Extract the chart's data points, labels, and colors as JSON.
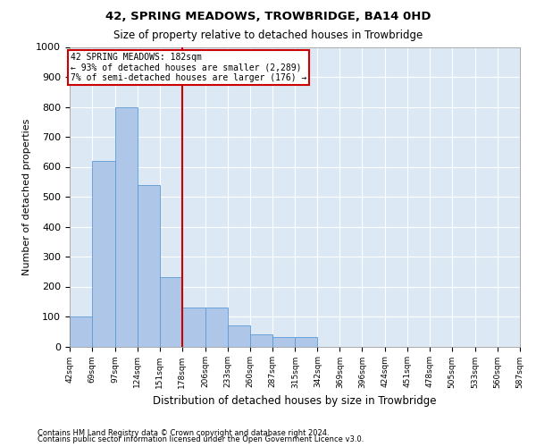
{
  "title": "42, SPRING MEADOWS, TROWBRIDGE, BA14 0HD",
  "subtitle": "Size of property relative to detached houses in Trowbridge",
  "xlabel": "Distribution of detached houses by size in Trowbridge",
  "ylabel": "Number of detached properties",
  "footnote1": "Contains HM Land Registry data © Crown copyright and database right 2024.",
  "footnote2": "Contains public sector information licensed under the Open Government Licence v3.0.",
  "bin_edges": [
    42,
    69,
    97,
    124,
    151,
    178,
    206,
    233,
    260,
    287,
    315,
    342,
    369,
    396,
    424,
    451,
    478,
    505,
    533,
    560,
    587
  ],
  "bin_labels": [
    "42sqm",
    "69sqm",
    "97sqm",
    "124sqm",
    "151sqm",
    "178sqm",
    "206sqm",
    "233sqm",
    "260sqm",
    "287sqm",
    "315sqm",
    "342sqm",
    "369sqm",
    "396sqm",
    "424sqm",
    "451sqm",
    "478sqm",
    "505sqm",
    "533sqm",
    "560sqm",
    "587sqm"
  ],
  "bar_heights": [
    100,
    620,
    800,
    540,
    230,
    130,
    130,
    70,
    40,
    30,
    30,
    0,
    0,
    0,
    0,
    0,
    0,
    0,
    0,
    0
  ],
  "bar_color": "#aec6e8",
  "bar_edgecolor": "#5b9bd5",
  "background_color": "#dce9f5",
  "grid_color": "#ffffff",
  "property_line_x": 178,
  "property_line_color": "#cc0000",
  "annotation_text": "42 SPRING MEADOWS: 182sqm\n← 93% of detached houses are smaller (2,289)\n7% of semi-detached houses are larger (176) →",
  "annotation_box_color": "#cc0000",
  "ylim": [
    0,
    1000
  ],
  "yticks": [
    0,
    100,
    200,
    300,
    400,
    500,
    600,
    700,
    800,
    900,
    1000
  ]
}
